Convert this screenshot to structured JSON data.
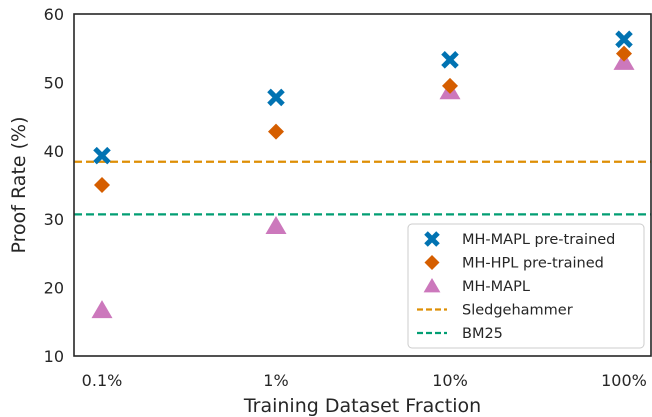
{
  "chart_data": {
    "type": "scatter",
    "categories": [
      "0.1%",
      "1%",
      "10%",
      "100%"
    ],
    "xlabel": "Training Dataset Fraction",
    "ylabel": "Proof Rate (%)",
    "ylim": [
      10,
      60
    ],
    "yticks": [
      10,
      20,
      30,
      40,
      50,
      60
    ],
    "grid": false,
    "legend_position": "lower-right",
    "series": [
      {
        "name": "MH-MAPL pre-trained",
        "marker": "x",
        "color": "#0173b2",
        "values": [
          39.3,
          47.8,
          53.3,
          56.3
        ]
      },
      {
        "name": "MH-HPL pre-trained",
        "marker": "diamond",
        "color": "#d55e00",
        "values": [
          35.0,
          42.8,
          49.5,
          54.2
        ]
      },
      {
        "name": "MH-MAPL",
        "marker": "triangle",
        "color": "#cc78bc",
        "values": [
          16.7,
          29.0,
          48.7,
          53.0
        ]
      }
    ],
    "hlines": [
      {
        "name": "Sledgehammer",
        "color": "#de8f05",
        "value": 38.4,
        "style": "dashed"
      },
      {
        "name": "BM25",
        "color": "#029e73",
        "value": 30.7,
        "style": "dashed"
      }
    ]
  }
}
